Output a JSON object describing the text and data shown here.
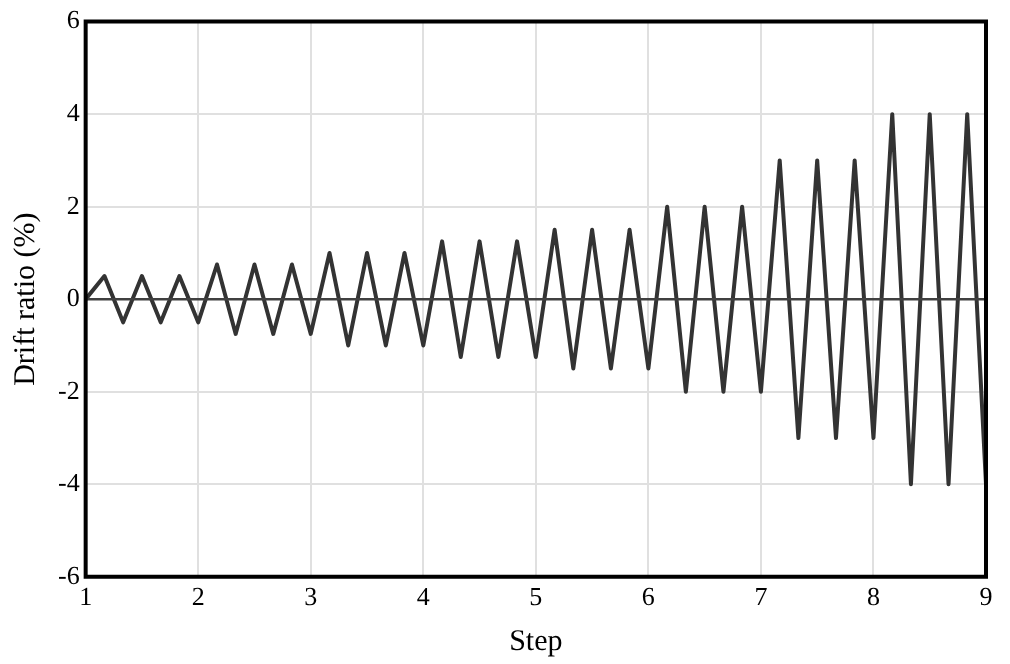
{
  "chart_data": {
    "type": "line",
    "xlabel": "Step",
    "ylabel": "Drift ratio (%)",
    "x": [
      1,
      1.167,
      1.333,
      1.5,
      1.667,
      1.833,
      2,
      2.167,
      2.333,
      2.5,
      2.667,
      2.833,
      3,
      3.167,
      3.333,
      3.5,
      3.667,
      3.833,
      4,
      4.167,
      4.333,
      4.5,
      4.667,
      4.833,
      5,
      5.167,
      5.333,
      5.5,
      5.667,
      5.833,
      6,
      6.167,
      6.333,
      6.5,
      6.667,
      6.833,
      7,
      7.167,
      7.333,
      7.5,
      7.667,
      7.833,
      8,
      8.167,
      8.333,
      8.5,
      8.667,
      8.833,
      9
    ],
    "series": [
      {
        "color": "#333333",
        "values": [
          0,
          0.5,
          -0.5,
          0.5,
          -0.5,
          0.5,
          -0.5,
          0.75,
          -0.75,
          0.75,
          -0.75,
          0.75,
          -0.75,
          1,
          -1,
          1,
          -1,
          1,
          -1,
          1.25,
          -1.25,
          1.25,
          -1.25,
          1.25,
          -1.25,
          1.5,
          -1.5,
          1.5,
          -1.5,
          1.5,
          -1.5,
          2,
          -2,
          2,
          -2,
          2,
          -2,
          3,
          -3,
          3,
          -3,
          3,
          -3,
          4,
          -4,
          4,
          -4,
          4,
          -4
        ]
      }
    ],
    "xlim": [
      1,
      9
    ],
    "xticks": [
      1,
      2,
      3,
      4,
      5,
      6,
      7,
      8,
      9
    ],
    "ylim": [
      -6,
      6
    ],
    "yticks": [
      -6,
      -4,
      -2,
      0,
      2,
      4,
      6
    ],
    "grid": true,
    "legend": false,
    "marker": "none",
    "line_style": "solid",
    "ref_lines": [
      {
        "axis": "y",
        "value": 0,
        "color": "#404040"
      }
    ]
  }
}
